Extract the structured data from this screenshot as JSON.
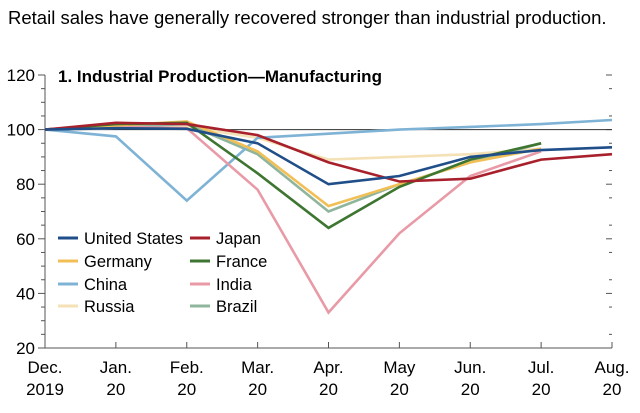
{
  "chart_data": {
    "type": "line",
    "subtitle": "Retail sales have generally recovered stronger than industrial production.",
    "title": "1. Industrial Production—Manufacturing",
    "xlabel": "",
    "ylabel": "",
    "categories": [
      [
        "Dec.",
        "2019"
      ],
      [
        "Jan.",
        "20"
      ],
      [
        "Feb.",
        "20"
      ],
      [
        "Mar.",
        "20"
      ],
      [
        "Apr.",
        "20"
      ],
      [
        "May",
        "20"
      ],
      [
        "Jun.",
        "20"
      ],
      [
        "Jul.",
        "20"
      ],
      [
        "Aug.",
        "20"
      ]
    ],
    "ylim": [
      20,
      120
    ],
    "y_ticks": [
      20,
      40,
      60,
      80,
      100,
      120
    ],
    "reference_line": 100,
    "grid": false,
    "legend_position": "bottom-left",
    "series": [
      {
        "name": "United States",
        "color": "#1f4e89",
        "values": [
          100,
          100.5,
          100.3,
          95,
          80,
          83,
          90,
          92.5,
          93.5
        ]
      },
      {
        "name": "Japan",
        "color": "#a8202b",
        "values": [
          100,
          102.5,
          102,
          98,
          88,
          81,
          82,
          89,
          91
        ]
      },
      {
        "name": "Germany",
        "color": "#f2bf57",
        "values": [
          100,
          101.5,
          103,
          92,
          72,
          80,
          88,
          93,
          null
        ]
      },
      {
        "name": "France",
        "color": "#3e7530",
        "values": [
          100,
          102,
          102.5,
          84,
          64,
          79,
          89,
          95,
          null
        ]
      },
      {
        "name": "China",
        "color": "#7fb3d5",
        "values": [
          100,
          97.5,
          74,
          97,
          98.5,
          100,
          101,
          102,
          103.5
        ]
      },
      {
        "name": "India",
        "color": "#e89aa6",
        "values": [
          100,
          101,
          100.5,
          78,
          33,
          62,
          83,
          92,
          null
        ]
      },
      {
        "name": "Russia",
        "color": "#f5e1b6",
        "values": [
          100,
          100.5,
          101,
          97,
          89,
          90,
          91,
          93,
          null
        ]
      },
      {
        "name": "Brazil",
        "color": "#8fb59c",
        "values": [
          100,
          101,
          102,
          91,
          70,
          80,
          88,
          95,
          null
        ]
      }
    ]
  }
}
